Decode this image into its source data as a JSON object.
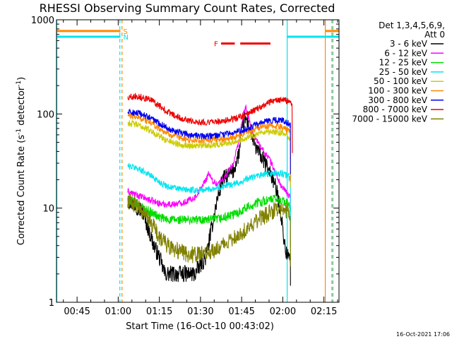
{
  "chart_data": {
    "type": "line",
    "title": "RHESSI Observing Summary Count Rates, Corrected",
    "xlabel": "Start Time (16-Oct-10 00:43:02)",
    "ylabel_main": "Corrected Count Rate (s",
    "ylabel_sup1": "-1",
    "ylabel_mid": " detector",
    "ylabel_sup2": "-1",
    "ylabel_end": ")",
    "yscale": "log",
    "ylim": [
      1,
      1000
    ],
    "xlim_minutes": [
      37.5,
      140.5
    ],
    "y_tick_labels": [
      {
        "value": 1,
        "label": "1"
      },
      {
        "value": 10,
        "label": "10"
      },
      {
        "value": 100,
        "label": "100"
      },
      {
        "value": 1000,
        "label": "1000"
      }
    ],
    "x_tick_labels": [
      {
        "minutes": 45,
        "label": "00:45"
      },
      {
        "minutes": 60,
        "label": "01:00"
      },
      {
        "minutes": 75,
        "label": "01:15"
      },
      {
        "minutes": 90,
        "label": "01:30"
      },
      {
        "minutes": 105,
        "label": "01:45"
      },
      {
        "minutes": 120,
        "label": "02:00"
      },
      {
        "minutes": 135,
        "label": "02:15"
      }
    ],
    "legend": {
      "placement": "right",
      "header1": "Det 1,3,4,5,6,9,",
      "header2": "Att 0"
    },
    "series": [
      {
        "name": "3 - 6 keV",
        "color": "#000000",
        "points": [
          [
            63.5,
            12
          ],
          [
            66,
            11
          ],
          [
            69,
            9
          ],
          [
            71,
            6
          ],
          [
            73,
            4
          ],
          [
            75,
            3
          ],
          [
            77,
            2
          ],
          [
            80,
            2
          ],
          [
            84,
            2
          ],
          [
            88,
            2
          ],
          [
            90,
            2.5
          ],
          [
            92,
            3
          ],
          [
            94,
            6
          ],
          [
            96,
            12
          ],
          [
            98,
            20
          ],
          [
            100,
            22
          ],
          [
            102,
            25
          ],
          [
            104,
            38
          ],
          [
            105.5,
            80
          ],
          [
            106.5,
            90
          ],
          [
            108,
            70
          ],
          [
            110,
            45
          ],
          [
            112,
            36
          ],
          [
            114,
            28
          ],
          [
            116,
            22
          ],
          [
            117,
            18
          ],
          [
            118,
            14
          ],
          [
            119,
            10
          ],
          [
            120,
            6
          ],
          [
            121,
            3.5
          ],
          [
            122,
            3
          ],
          [
            122.8,
            2.8
          ]
        ]
      },
      {
        "name": "6 - 12 keV",
        "color": "#ff00ff",
        "points": [
          [
            63.5,
            15
          ],
          [
            66,
            14
          ],
          [
            69,
            13
          ],
          [
            72,
            12
          ],
          [
            76,
            11
          ],
          [
            80,
            11
          ],
          [
            84,
            11.5
          ],
          [
            88,
            13
          ],
          [
            90,
            16
          ],
          [
            92,
            20
          ],
          [
            93,
            24
          ],
          [
            94,
            20
          ],
          [
            96,
            18
          ],
          [
            98,
            20
          ],
          [
            100,
            24
          ],
          [
            102,
            30
          ],
          [
            104,
            50
          ],
          [
            105.5,
            95
          ],
          [
            106.5,
            120
          ],
          [
            107.5,
            90
          ],
          [
            109,
            60
          ],
          [
            111,
            50
          ],
          [
            113,
            40
          ],
          [
            115,
            34
          ],
          [
            117,
            25
          ],
          [
            119,
            18
          ],
          [
            121,
            15
          ],
          [
            122.8,
            13
          ]
        ]
      },
      {
        "name": "12 - 25 keV",
        "color": "#00dd00",
        "points": [
          [
            63.5,
            12.5
          ],
          [
            66,
            11.5
          ],
          [
            69,
            10
          ],
          [
            72,
            9
          ],
          [
            75,
            8
          ],
          [
            78,
            7.5
          ],
          [
            82,
            7.5
          ],
          [
            86,
            7.5
          ],
          [
            90,
            7.5
          ],
          [
            94,
            7.5
          ],
          [
            98,
            7.8
          ],
          [
            102,
            8.5
          ],
          [
            105,
            9.5
          ],
          [
            108,
            10.5
          ],
          [
            111,
            11.5
          ],
          [
            114,
            12
          ],
          [
            117,
            12.5
          ],
          [
            120,
            12
          ],
          [
            122,
            11
          ],
          [
            122.8,
            10
          ]
        ]
      },
      {
        "name": "25 - 50 keV",
        "color": "#00e5ee",
        "points": [
          [
            63.5,
            28
          ],
          [
            66,
            27
          ],
          [
            69,
            25
          ],
          [
            72,
            22
          ],
          [
            75,
            19
          ],
          [
            78,
            17
          ],
          [
            82,
            16
          ],
          [
            86,
            15.5
          ],
          [
            90,
            15.5
          ],
          [
            94,
            16
          ],
          [
            98,
            17
          ],
          [
            102,
            18
          ],
          [
            105,
            19
          ],
          [
            108,
            21
          ],
          [
            111,
            22
          ],
          [
            114,
            23
          ],
          [
            117,
            23.5
          ],
          [
            120,
            23
          ],
          [
            122,
            22
          ],
          [
            122.8,
            20
          ]
        ]
      },
      {
        "name": "50 - 100 keV",
        "color": "#cccc00",
        "points": [
          [
            63.5,
            80
          ],
          [
            66,
            78
          ],
          [
            69,
            73
          ],
          [
            72,
            66
          ],
          [
            75,
            58
          ],
          [
            78,
            52
          ],
          [
            82,
            48
          ],
          [
            86,
            46
          ],
          [
            90,
            46
          ],
          [
            94,
            46.5
          ],
          [
            98,
            48
          ],
          [
            102,
            51
          ],
          [
            105,
            54
          ],
          [
            108,
            58
          ],
          [
            111,
            61
          ],
          [
            114,
            63
          ],
          [
            117,
            64
          ],
          [
            120,
            62
          ],
          [
            122,
            58
          ],
          [
            122.8,
            55
          ]
        ]
      },
      {
        "name": "100 - 300 keV",
        "color": "#ff8800",
        "points": [
          [
            63.5,
            96
          ],
          [
            66,
            94
          ],
          [
            69,
            88
          ],
          [
            72,
            80
          ],
          [
            75,
            70
          ],
          [
            78,
            62
          ],
          [
            82,
            56
          ],
          [
            86,
            53
          ],
          [
            90,
            52
          ],
          [
            94,
            52.5
          ],
          [
            98,
            54
          ],
          [
            102,
            57
          ],
          [
            105,
            61
          ],
          [
            108,
            66
          ],
          [
            111,
            71
          ],
          [
            114,
            74
          ],
          [
            117,
            75
          ],
          [
            120,
            72
          ],
          [
            122,
            67
          ],
          [
            122.8,
            63
          ]
        ]
      },
      {
        "name": "300 - 800 keV",
        "color": "#0000ee",
        "points": [
          [
            63.5,
            104
          ],
          [
            66,
            103
          ],
          [
            69,
            98
          ],
          [
            72,
            90
          ],
          [
            75,
            80
          ],
          [
            78,
            71
          ],
          [
            82,
            64
          ],
          [
            86,
            60
          ],
          [
            90,
            58
          ],
          [
            94,
            58.5
          ],
          [
            98,
            60
          ],
          [
            102,
            63
          ],
          [
            105,
            67
          ],
          [
            108,
            72
          ],
          [
            111,
            78
          ],
          [
            114,
            83
          ],
          [
            117,
            86
          ],
          [
            120,
            85
          ],
          [
            122,
            80
          ],
          [
            122.8,
            76
          ]
        ]
      },
      {
        "name": "800 - 7000 keV",
        "color": "#ee0000",
        "points": [
          [
            63.5,
            150
          ],
          [
            66,
            155
          ],
          [
            69,
            150
          ],
          [
            72,
            140
          ],
          [
            75,
            122
          ],
          [
            78,
            105
          ],
          [
            82,
            92
          ],
          [
            86,
            85
          ],
          [
            90,
            82
          ],
          [
            94,
            82
          ],
          [
            98,
            84
          ],
          [
            102,
            88
          ],
          [
            105,
            94
          ],
          [
            108,
            103
          ],
          [
            111,
            115
          ],
          [
            114,
            128
          ],
          [
            117,
            138
          ],
          [
            120,
            142
          ],
          [
            122,
            135
          ],
          [
            123.5,
            128
          ]
        ]
      },
      {
        "name": "7000 - 15000 keV",
        "color": "#808000",
        "points": [
          [
            63.5,
            12
          ],
          [
            66,
            11
          ],
          [
            69,
            9
          ],
          [
            72,
            7
          ],
          [
            75,
            5
          ],
          [
            78,
            4
          ],
          [
            82,
            3.5
          ],
          [
            86,
            3.2
          ],
          [
            90,
            3.2
          ],
          [
            94,
            3.5
          ],
          [
            98,
            4
          ],
          [
            102,
            4.8
          ],
          [
            105,
            5.5
          ],
          [
            108,
            6.5
          ],
          [
            111,
            7.5
          ],
          [
            114,
            8.5
          ],
          [
            117,
            9.5
          ],
          [
            120,
            10
          ],
          [
            122,
            9
          ],
          [
            122.8,
            8
          ]
        ]
      }
    ],
    "flags": [
      {
        "label": "S",
        "color": "#ff8800",
        "kind": "segments",
        "segments": [
          [
            37.5,
            60.8
          ],
          [
            135.5,
            140.5
          ]
        ],
        "y_value": 760
      },
      {
        "label": "N",
        "color": "#00e5ee",
        "kind": "segments",
        "segments": [
          [
            37.5,
            60.8
          ],
          [
            121.6,
            140.5
          ]
        ],
        "y_value": 660
      },
      {
        "label": "F",
        "color": "#ee0000",
        "kind": "segments",
        "segments": [
          [
            97.5,
            102.5
          ],
          [
            104.5,
            115.5
          ]
        ],
        "y_value": 560
      }
    ],
    "vertical_markers": [
      {
        "color": "#00e5ee",
        "style": "solid",
        "x_minutes": 37.6
      },
      {
        "color": "#00e5ee",
        "style": "dashed",
        "x_minutes": 60.6
      },
      {
        "color": "#ff8800",
        "style": "dashed",
        "x_minutes": 61.4
      },
      {
        "color": "#00e5ee",
        "style": "solid",
        "x_minutes": 121.6
      },
      {
        "color": "#ff8800",
        "style": "solid",
        "x_minutes": 135.5
      },
      {
        "color": "#ff8800",
        "style": "dashed",
        "x_minutes": 137.9
      },
      {
        "color": "#00e5ee",
        "style": "dashed",
        "x_minutes": 138.3
      }
    ]
  },
  "footer": {
    "timestamp": "16-Oct-2021 17:06"
  }
}
